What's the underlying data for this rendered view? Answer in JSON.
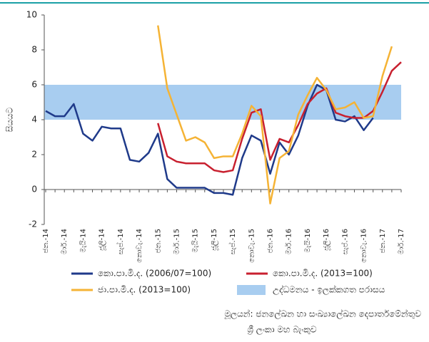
{
  "chart_data": {
    "type": "line",
    "y_label": "සියයට",
    "categories": [
      "ජන.-14",
      null,
      "මාර්.-14",
      null,
      "මැයි-14",
      null,
      "ජූලි-14",
      null,
      "සැප්.-14",
      null,
      "නොවැ.-14",
      null,
      "ජන.-15",
      null,
      "මාර්.-15",
      null,
      "මැයි-15",
      null,
      "ජූලි-15",
      null,
      "සැප්.-15",
      null,
      "නොවැ.-15",
      null,
      "ජන.-16",
      null,
      "මාර්.-16",
      null,
      "මැයි-16",
      null,
      "ජූලි-16",
      null,
      "සැප්.-16",
      null,
      "නොවැ.-16",
      null,
      "ජන.-17",
      null,
      "මාර්.-17"
    ],
    "series": [
      {
        "name": "කො.පා.මි.ද. (2006/07=100)",
        "color": "#1f3a8a",
        "values": [
          4.5,
          4.2,
          4.2,
          4.9,
          3.2,
          2.8,
          3.6,
          3.5,
          3.5,
          1.7,
          1.6,
          2.1,
          3.2,
          0.6,
          0.1,
          0.1,
          0.1,
          0.1,
          -0.2,
          -0.2,
          -0.3,
          1.8,
          3.1,
          2.8,
          0.9,
          2.7,
          2.0,
          3.1,
          4.8,
          6.0,
          5.7,
          4.0,
          3.9,
          4.2,
          3.4,
          4.1,
          null,
          null,
          null
        ]
      },
      {
        "name": "කො.පා.මි.ද. (2013=100)",
        "color": "#c8202f",
        "values": [
          null,
          null,
          null,
          null,
          null,
          null,
          null,
          null,
          null,
          null,
          null,
          null,
          3.8,
          1.9,
          1.6,
          1.5,
          1.5,
          1.5,
          1.1,
          1.0,
          1.1,
          2.9,
          4.4,
          4.6,
          1.7,
          2.9,
          2.7,
          3.7,
          4.9,
          5.5,
          5.8,
          4.4,
          4.2,
          4.1,
          4.1,
          4.5,
          5.6,
          6.8,
          7.3
        ]
      },
      {
        "name": "ජා.පා.මි.ද. (2013=100)",
        "color": "#f5b335",
        "values": [
          null,
          null,
          null,
          null,
          null,
          null,
          null,
          null,
          null,
          null,
          null,
          null,
          9.4,
          5.8,
          4.3,
          2.8,
          3.0,
          2.7,
          1.8,
          1.9,
          1.9,
          3.2,
          4.8,
          4.2,
          -0.8,
          1.8,
          2.2,
          4.3,
          5.4,
          6.4,
          5.7,
          4.6,
          4.7,
          5.0,
          4.1,
          4.2,
          6.5,
          8.2,
          null
        ]
      }
    ],
    "target_range": {
      "name": "උද්ධමනය - ඉලක්කගත පරාසය",
      "low": 4,
      "high": 6,
      "color": "#a8cdf0"
    },
    "ylim": [
      -2,
      10
    ],
    "yticks": [
      -2,
      0,
      2,
      4,
      6,
      8,
      10
    ],
    "source": [
      "මූලයන්: ජනලේඛන හා සංඛ්‍යාලේඛන දෙපාර්තමේන්තුව",
      "ශ්‍රී ලංකා මහ බැංකුව"
    ]
  }
}
